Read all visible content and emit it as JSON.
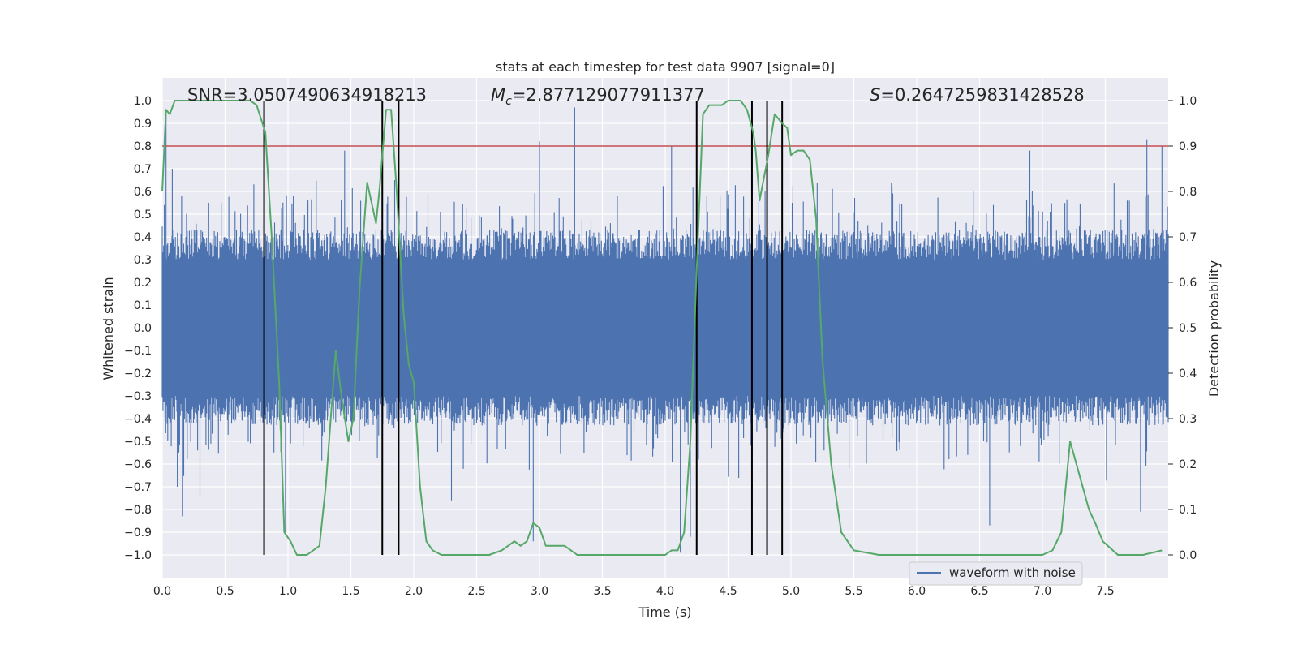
{
  "chart_data": {
    "type": "line",
    "title": "stats at each timestep for test data 9907 [signal=0]",
    "xlabel": "Time (s)",
    "ylabel": "Whitened strain",
    "y2label": "Detection probability",
    "xlim": [
      0.0,
      8.0
    ],
    "ylim": [
      -1.1,
      1.1
    ],
    "y2lim": [
      -0.05,
      1.05
    ],
    "xticks": [
      "0.0",
      "0.5",
      "1.0",
      "1.5",
      "2.0",
      "2.5",
      "3.0",
      "3.5",
      "4.0",
      "4.5",
      "5.0",
      "5.5",
      "6.0",
      "6.5",
      "7.0",
      "7.5"
    ],
    "yticks": [
      "1.0",
      "0.9",
      "0.8",
      "0.7",
      "0.6",
      "0.5",
      "0.4",
      "0.3",
      "0.2",
      "0.1",
      "0.0",
      "−0.1",
      "−0.2",
      "−0.3",
      "−0.4",
      "−0.5",
      "−0.6",
      "−0.7",
      "−0.8",
      "−0.9",
      "−1.0"
    ],
    "y2ticks": [
      "1.0",
      "0.9",
      "0.8",
      "0.7",
      "0.6",
      "0.5",
      "0.4",
      "0.3",
      "0.2",
      "0.1",
      "0.0"
    ],
    "annotations": {
      "snr": "SNR=3.0507490634918213",
      "mc_symbol": "M",
      "mc_sub": "c",
      "mc_value": "=2.877129077911377",
      "s_symbol": "S",
      "s_value": "=0.2647259831428528"
    },
    "threshold": {
      "y2": 0.9,
      "color": "#c44e52"
    },
    "vertical_lines_x": [
      0.81,
      1.75,
      1.88,
      4.25,
      4.69,
      4.81,
      4.93
    ],
    "legend": {
      "label": "waveform with noise",
      "placement": "lower-right"
    },
    "series": [
      {
        "name": "waveform with noise",
        "color": "#4c72b0",
        "description": "dense whitened-strain noise, bulk band about ±0.4, sparse spikes up to ±1.0",
        "spikes": [
          {
            "x": 0.03,
            "y": 0.95
          },
          {
            "x": 0.08,
            "y": 0.7
          },
          {
            "x": 0.12,
            "y": -0.7
          },
          {
            "x": 0.16,
            "y": -0.83
          },
          {
            "x": 0.3,
            "y": -0.74
          },
          {
            "x": 0.98,
            "y": -0.9
          },
          {
            "x": 1.45,
            "y": 0.78
          },
          {
            "x": 1.75,
            "y": 0.78
          },
          {
            "x": 2.3,
            "y": -0.76
          },
          {
            "x": 2.95,
            "y": -0.94
          },
          {
            "x": 3.0,
            "y": 0.82
          },
          {
            "x": 3.28,
            "y": 0.97
          },
          {
            "x": 4.05,
            "y": 0.8
          },
          {
            "x": 4.12,
            "y": -0.99
          },
          {
            "x": 4.2,
            "y": -0.92
          },
          {
            "x": 6.58,
            "y": -0.87
          },
          {
            "x": 6.9,
            "y": 0.78
          },
          {
            "x": 7.78,
            "y": -0.81
          },
          {
            "x": 7.83,
            "y": 0.83
          },
          {
            "x": 7.95,
            "y": 0.8
          }
        ]
      },
      {
        "name": "detection probability",
        "color": "#55a868",
        "axis": "y2",
        "x": [
          0.0,
          0.03,
          0.06,
          0.1,
          0.12,
          0.15,
          0.2,
          0.3,
          0.4,
          0.5,
          0.6,
          0.7,
          0.75,
          0.82,
          0.87,
          0.93,
          0.97,
          1.02,
          1.07,
          1.15,
          1.25,
          1.3,
          1.38,
          1.43,
          1.48,
          1.52,
          1.57,
          1.63,
          1.7,
          1.73,
          1.78,
          1.82,
          1.86,
          1.92,
          1.96,
          2.0,
          2.05,
          2.1,
          2.15,
          2.22,
          2.3,
          2.5,
          2.6,
          2.7,
          2.75,
          2.8,
          2.85,
          2.9,
          2.95,
          3.0,
          3.05,
          3.1,
          3.2,
          3.3,
          3.45,
          3.55,
          3.6,
          3.7,
          3.8,
          3.9,
          4.0,
          4.05,
          4.1,
          4.15,
          4.2,
          4.25,
          4.3,
          4.35,
          4.4,
          4.45,
          4.5,
          4.6,
          4.65,
          4.7,
          4.72,
          4.75,
          4.82,
          4.87,
          4.93,
          4.97,
          5.0,
          5.05,
          5.1,
          5.15,
          5.2,
          5.25,
          5.32,
          5.4,
          5.5,
          5.7,
          6.0,
          6.2,
          6.4,
          6.55,
          6.7,
          7.0,
          7.08,
          7.15,
          7.22,
          7.3,
          7.37,
          7.42,
          7.48,
          7.6,
          7.8,
          7.95
        ],
        "y": [
          0.8,
          0.98,
          0.97,
          1.0,
          1.0,
          1.0,
          1.0,
          1.0,
          1.0,
          1.0,
          1.0,
          1.0,
          0.99,
          0.93,
          0.7,
          0.38,
          0.05,
          0.03,
          0.0,
          0.0,
          0.02,
          0.15,
          0.45,
          0.34,
          0.25,
          0.3,
          0.59,
          0.82,
          0.73,
          0.81,
          0.98,
          0.98,
          0.82,
          0.53,
          0.42,
          0.38,
          0.15,
          0.03,
          0.01,
          0.0,
          0.0,
          0.0,
          0.0,
          0.01,
          0.02,
          0.03,
          0.02,
          0.03,
          0.07,
          0.06,
          0.02,
          0.02,
          0.02,
          0.0,
          0.0,
          0.0,
          0.0,
          0.0,
          0.0,
          0.0,
          0.0,
          0.01,
          0.01,
          0.05,
          0.25,
          0.63,
          0.97,
          0.99,
          0.99,
          0.99,
          1.0,
          1.0,
          0.98,
          0.93,
          0.89,
          0.78,
          0.88,
          0.97,
          0.95,
          0.94,
          0.88,
          0.89,
          0.89,
          0.87,
          0.74,
          0.43,
          0.2,
          0.05,
          0.01,
          0.0,
          0.0,
          0.0,
          0.0,
          0.0,
          0.0,
          0.0,
          0.01,
          0.05,
          0.25,
          0.17,
          0.1,
          0.07,
          0.03,
          0.0,
          0.0,
          0.01
        ]
      }
    ]
  }
}
